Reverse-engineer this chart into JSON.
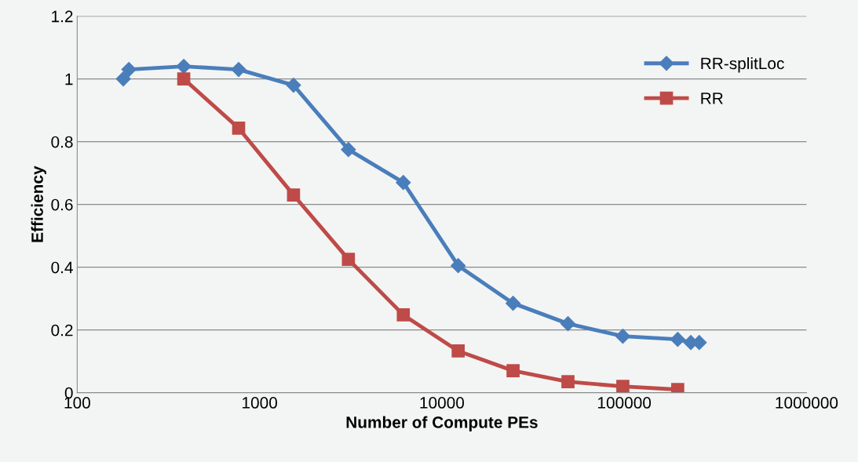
{
  "chart_data": {
    "type": "line",
    "xlabel": "Number of Compute PEs",
    "ylabel": "Efficiency",
    "log": "x",
    "xlim": [
      100,
      1000000
    ],
    "xticks": [
      100,
      1000,
      10000,
      100000,
      1000000
    ],
    "ylim": [
      0,
      1.2
    ],
    "yticks": [
      {
        "value": 0,
        "label": "0"
      },
      0.2,
      0.4,
      0.6,
      0.8,
      {
        "value": 1,
        "label": "1"
      },
      1.2
    ],
    "grid": "y",
    "legend": "top right",
    "series": [
      {
        "name": "RR-splitLoc",
        "color": "#4a7ebb",
        "marker": "diamond",
        "x": [
          179,
          192,
          384,
          768,
          1536,
          3072,
          6144,
          12288,
          24576,
          49152,
          98304,
          196608,
          232000,
          258000
        ],
        "values": [
          1.0,
          1.03,
          1.04,
          1.03,
          0.98,
          0.775,
          0.67,
          0.405,
          0.285,
          0.22,
          0.18,
          0.17,
          0.16,
          0.16
        ]
      },
      {
        "name": "RR",
        "color": "#be4b48",
        "marker": "square",
        "x": [
          384,
          768,
          1536,
          3072,
          6144,
          12288,
          24576,
          49152,
          98304,
          196608
        ],
        "values": [
          1.0,
          0.843,
          0.63,
          0.425,
          0.248,
          0.133,
          0.07,
          0.035,
          0.02,
          0.01
        ]
      }
    ]
  }
}
